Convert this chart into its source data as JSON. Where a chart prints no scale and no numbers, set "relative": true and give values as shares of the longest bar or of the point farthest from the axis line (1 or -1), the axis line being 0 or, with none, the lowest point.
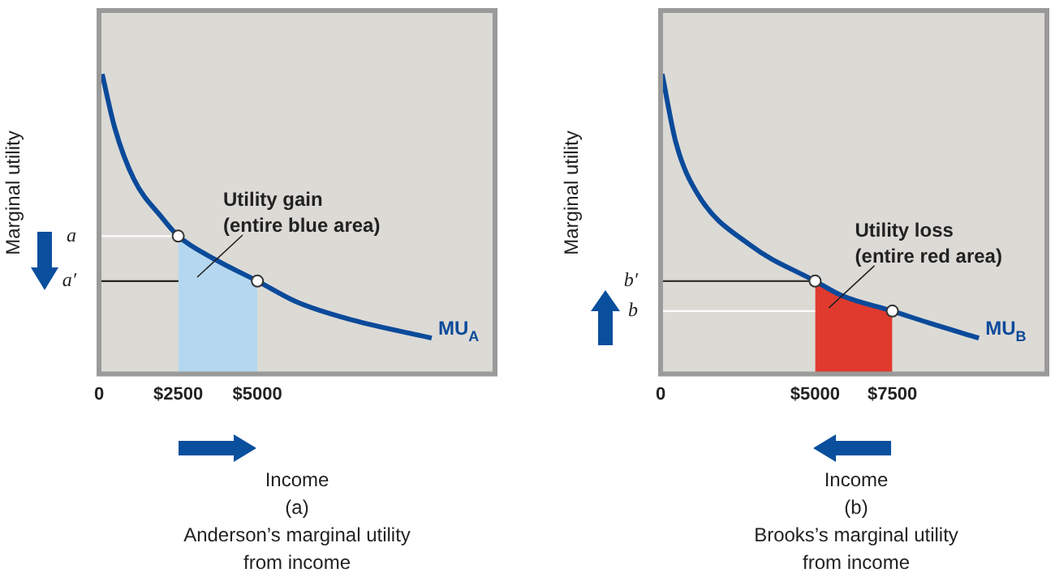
{
  "chart_data": [
    {
      "type": "line",
      "title": "(a)",
      "subtitle": "Anderson’s marginal utility from income",
      "xlabel": "Income",
      "ylabel": "Marginal utility",
      "relative": true,
      "xlim": [
        0,
        12500
      ],
      "xticks": [
        0,
        {
          "value": 2500,
          "label": "$2500"
        },
        {
          "value": 5000,
          "label": "$5000"
        }
      ],
      "grid": false,
      "legend": false,
      "series": [
        {
          "type": "area",
          "color": "#b5d7f0",
          "x": [
            2500,
            3700,
            5000
          ],
          "values": [
            0.46,
            0.38,
            0.31
          ]
        },
        {
          "type": "line",
          "name": "MU$_{A}$",
          "color": "#0a4a9a",
          "x": [
            100,
            500,
            1100,
            2000,
            2500,
            3700,
            5000,
            6250,
            8000,
            10500
          ],
          "values": [
            1,
            0.82,
            0.65,
            0.52,
            0.46,
            0.38,
            0.31,
            0.24,
            0.18,
            0.12
          ]
        },
        {
          "type": "scatter",
          "marker": "circle",
          "color": "#ffffff",
          "x": [
            2500,
            5000
          ],
          "values": [
            0.46,
            0.31
          ]
        }
      ],
      "ref_lines": [
        {
          "axis": "y",
          "value": 0.46,
          "label": "a",
          "color": "#ffffff"
        },
        {
          "axis": "y",
          "value": 0.31,
          "label": "a′",
          "color": "#222222"
        }
      ],
      "annotations": [
        "Utility gain\n(entire blue area)"
      ]
    },
    {
      "type": "line",
      "title": "(b)",
      "subtitle": "Brooks’s marginal utility from income",
      "xlabel": "Income",
      "ylabel": "Marginal utility",
      "relative": true,
      "xlim": [
        0,
        12500
      ],
      "xticks": [
        0,
        {
          "value": 5000,
          "label": "$5000"
        },
        {
          "value": 7500,
          "label": "$7500"
        }
      ],
      "grid": false,
      "legend": false,
      "series": [
        {
          "type": "area",
          "color": "#e03a2f",
          "x": [
            5000,
            5900,
            7500
          ],
          "values": [
            0.31,
            0.26,
            0.21
          ]
        },
        {
          "type": "line",
          "name": "MU$_{B}$",
          "color": "#0a4a9a",
          "x": [
            50,
            500,
            1200,
            2900,
            5000,
            5900,
            7500,
            8700,
            10300
          ],
          "values": [
            1,
            0.77,
            0.6,
            0.43,
            0.31,
            0.26,
            0.21,
            0.17,
            0.12
          ]
        },
        {
          "type": "scatter",
          "marker": "circle",
          "color": "#ffffff",
          "x": [
            5000,
            7500
          ],
          "values": [
            0.31,
            0.21
          ]
        }
      ],
      "ref_lines": [
        {
          "axis": "y",
          "value": 0.31,
          "label": "b′",
          "color": "#333333"
        },
        {
          "axis": "y",
          "value": 0.21,
          "label": "b",
          "color": "#ffffff"
        }
      ],
      "annotations": [
        "Utility loss\n(entire red area)"
      ]
    }
  ]
}
